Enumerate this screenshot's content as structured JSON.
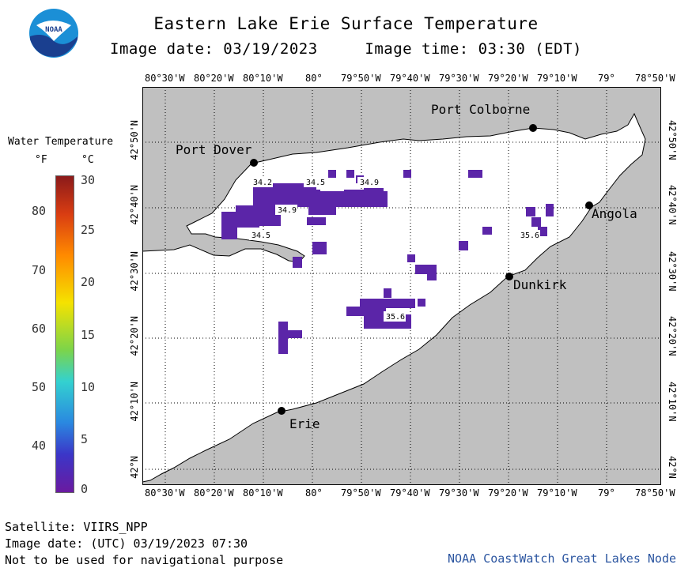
{
  "title": "Eastern Lake Erie Surface Temperature",
  "subtitle_date": "Image date: 03/19/2023",
  "subtitle_time": "Image time: 03:30 (EDT)",
  "logo_text": "NOAA",
  "legend": {
    "heading": "Water Temperature",
    "unit_f": "°F",
    "unit_c": "°C",
    "f_ticks": [
      "80",
      "70",
      "60",
      "50",
      "40"
    ],
    "c_ticks": [
      "30",
      "25",
      "20",
      "15",
      "10",
      "5",
      "0"
    ]
  },
  "map": {
    "lon_labels": [
      "80°30'W",
      "80°20'W",
      "80°10'W",
      "80°",
      "79°50'W",
      "79°40'W",
      "79°30'W",
      "79°20'W",
      "79°10'W",
      "79°",
      "78°50'W"
    ],
    "lat_labels": [
      "42°50'N",
      "42°40'N",
      "42°30'N",
      "42°20'N",
      "42°10'N",
      "42°N"
    ],
    "cities": [
      {
        "name": "Port Dover"
      },
      {
        "name": "Port Colborne"
      },
      {
        "name": "Angola"
      },
      {
        "name": "Dunkirk"
      },
      {
        "name": "Erie"
      }
    ],
    "values": [
      "34.2",
      "34.5",
      "34.9",
      "34.9",
      "34.5",
      "35.6",
      "35.6"
    ],
    "colors": {
      "land": "#c0c0c0",
      "water": "#ffffff",
      "cold": "#5b25a8",
      "city": "#000000"
    }
  },
  "footer": {
    "satellite": "Satellite: VIIRS_NPP",
    "utc_date": "Image date: (UTC) 03/19/2023  07:30",
    "warning": "Not to be used for navigational purpose",
    "credit": "NOAA CoastWatch Great Lakes Node"
  }
}
